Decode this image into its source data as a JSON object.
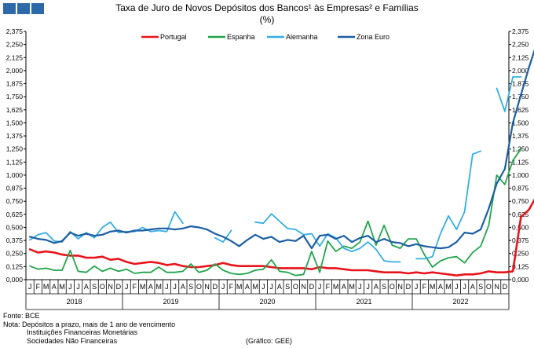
{
  "title_line1": "Taxa de Juro de Novos Depósitos dos Bancos¹ às Empresas² e Famílias",
  "title_line2": "(%)",
  "source": "Fonte: BCE",
  "note_line1": "Nota: Depósitos a prazo, mais de 1 ano de vencimento",
  "note_line2": "Instituições Financeiras Monetárias",
  "note_line3": "Sociedades Não Financeiras",
  "credit": "(Gráfico: GEE)",
  "chart_data": {
    "type": "line",
    "ylim": [
      0,
      2.375
    ],
    "ytick_values": [
      0,
      0.125,
      0.25,
      0.375,
      0.5,
      0.625,
      0.75,
      0.875,
      1.0,
      1.125,
      1.25,
      1.375,
      1.5,
      1.625,
      1.75,
      1.875,
      2.0,
      2.125,
      2.25,
      2.375
    ],
    "ytick_labels": [
      "0,000",
      "0,125",
      "0,250",
      "0,375",
      "0,500",
      "0,625",
      "0,750",
      "0,875",
      "1,000",
      "1,125",
      "1,250",
      "1,375",
      "1,500",
      "1,625",
      "1,750",
      "1,875",
      "2,000",
      "2,125",
      "2,250",
      "2,375"
    ],
    "month_labels": [
      "J",
      "F",
      "M",
      "A",
      "M",
      "J",
      "J",
      "A",
      "S",
      "O",
      "N",
      "D"
    ],
    "years": [
      "2018",
      "2019",
      "2020",
      "2021",
      "2022"
    ],
    "legend_position": "top",
    "series": [
      {
        "name": "Portugal",
        "color": "#e8141c",
        "width": 2.6,
        "values": [
          0.29,
          0.26,
          0.27,
          0.26,
          0.24,
          0.23,
          0.23,
          0.21,
          0.21,
          0.22,
          0.19,
          0.2,
          0.17,
          0.15,
          0.16,
          0.17,
          0.16,
          0.14,
          0.15,
          0.13,
          0.12,
          0.12,
          0.13,
          0.14,
          0.16,
          0.14,
          0.13,
          0.13,
          0.13,
          0.13,
          0.12,
          0.11,
          0.11,
          0.11,
          0.11,
          0.1,
          0.12,
          0.11,
          0.11,
          0.1,
          0.09,
          0.09,
          0.09,
          0.08,
          0.07,
          0.07,
          0.07,
          0.06,
          0.07,
          0.06,
          0.07,
          0.06,
          0.05,
          0.04,
          0.05,
          0.05,
          0.06,
          0.08,
          0.07,
          0.07,
          0.08,
          0.6,
          0.67,
          0.81
        ]
      },
      {
        "name": "Espanha",
        "color": "#21a54c",
        "width": 1.8,
        "values": [
          0.13,
          0.1,
          0.11,
          0.09,
          0.09,
          0.28,
          0.08,
          0.07,
          0.13,
          0.08,
          0.11,
          0.08,
          0.1,
          0.06,
          0.07,
          0.07,
          0.12,
          0.07,
          0.07,
          0.08,
          0.15,
          0.07,
          0.09,
          0.15,
          0.09,
          0.06,
          0.05,
          0.06,
          0.09,
          0.1,
          0.19,
          0.08,
          0.07,
          0.04,
          0.05,
          0.27,
          0.07,
          0.37,
          0.27,
          0.32,
          0.3,
          0.36,
          0.56,
          0.33,
          0.52,
          0.33,
          0.3,
          0.39,
          0.39,
          0.24,
          0.12,
          0.18,
          0.21,
          0.22,
          0.16,
          0.26,
          0.32,
          0.52,
          1.0,
          0.91,
          1.14,
          1.25
        ]
      },
      {
        "name": "Alemanha",
        "color": "#35aee3",
        "width": 1.8,
        "values": [
          0.38,
          0.43,
          0.45,
          0.37,
          0.36,
          0.46,
          0.39,
          0.45,
          0.4,
          0.5,
          0.55,
          0.45,
          0.46,
          0.46,
          0.5,
          0.46,
          0.47,
          0.46,
          0.65,
          0.54,
          null,
          null,
          null,
          0.4,
          0.36,
          0.47,
          null,
          null,
          0.55,
          0.54,
          0.63,
          0.56,
          0.49,
          0.48,
          0.43,
          0.44,
          0.32,
          0.44,
          0.4,
          0.3,
          0.27,
          0.3,
          0.36,
          0.29,
          0.18,
          0.17,
          0.17,
          null,
          0.2,
          0.2,
          0.22,
          0.44,
          0.61,
          0.48,
          0.65,
          1.2,
          1.23,
          null,
          1.83,
          1.61,
          1.94,
          1.94
        ]
      },
      {
        "name": "Zona Euro",
        "color": "#1c5fa3",
        "width": 2.2,
        "values": [
          0.41,
          0.39,
          0.38,
          0.35,
          0.37,
          0.45,
          0.42,
          0.44,
          0.42,
          0.43,
          0.46,
          0.47,
          0.45,
          0.47,
          0.47,
          0.48,
          0.49,
          0.49,
          0.48,
          0.49,
          0.51,
          0.5,
          0.48,
          0.44,
          0.41,
          0.37,
          0.32,
          0.38,
          0.43,
          0.39,
          0.41,
          0.36,
          0.38,
          0.37,
          0.42,
          0.3,
          0.42,
          0.43,
          0.39,
          0.42,
          0.36,
          0.4,
          0.42,
          0.36,
          0.39,
          0.36,
          0.35,
          0.32,
          0.34,
          0.32,
          0.31,
          0.3,
          0.31,
          0.36,
          0.45,
          0.44,
          0.48,
          0.68,
          0.92,
          1.06,
          1.5,
          1.77,
          2.03,
          2.27
        ]
      }
    ]
  }
}
